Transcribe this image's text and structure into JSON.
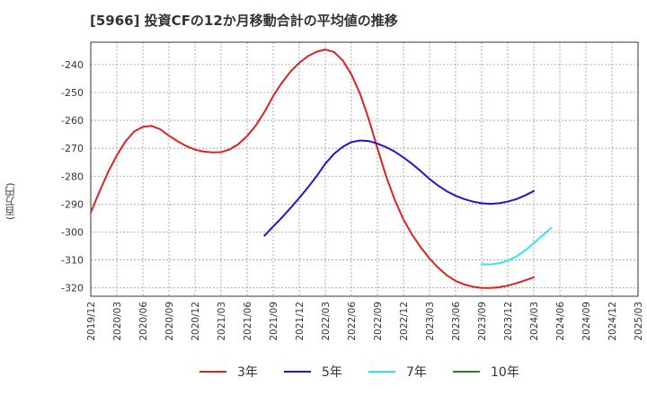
{
  "title": "[5966]  投資CFの12か月移動合計の平均値の推移",
  "ylabel": "(百万円)",
  "chart_data": {
    "type": "line",
    "title": "[5966]  投資CFの12か月移動合計の平均値の推移",
    "ylabel": "(百万円)",
    "xlabel": "",
    "ylim": [
      -323,
      -232
    ],
    "xlim": [
      "2019/12",
      "2025/03"
    ],
    "yticks": [
      -240,
      -250,
      -260,
      -270,
      -280,
      -290,
      -300,
      -310,
      -320
    ],
    "xticks": [
      "2019/12",
      "2020/03",
      "2020/06",
      "2020/09",
      "2020/12",
      "2021/03",
      "2021/06",
      "2021/09",
      "2021/12",
      "2022/03",
      "2022/06",
      "2022/09",
      "2022/12",
      "2023/03",
      "2023/06",
      "2023/09",
      "2023/12",
      "2024/03",
      "2024/06",
      "2024/09",
      "2024/12",
      "2025/03"
    ],
    "grid": true,
    "legend_position": "bottom",
    "series": [
      {
        "name": "3年",
        "color": "#dd2222",
        "points": [
          [
            "2019/12",
            -293
          ],
          [
            "2020/01",
            -285.5
          ],
          [
            "2020/02",
            -278.5
          ],
          [
            "2020/03",
            -272.5
          ],
          [
            "2020/04",
            -267.5
          ],
          [
            "2020/05",
            -264
          ],
          [
            "2020/06",
            -262.3
          ],
          [
            "2020/07",
            -262
          ],
          [
            "2020/08",
            -263.2
          ],
          [
            "2020/09",
            -265.5
          ],
          [
            "2020/10",
            -267.5
          ],
          [
            "2020/11",
            -269.2
          ],
          [
            "2020/12",
            -270.5
          ],
          [
            "2021/01",
            -271.2
          ],
          [
            "2021/02",
            -271.5
          ],
          [
            "2021/03",
            -271.4
          ],
          [
            "2021/04",
            -270.4
          ],
          [
            "2021/05",
            -268.5
          ],
          [
            "2021/06",
            -265.6
          ],
          [
            "2021/07",
            -261.8
          ],
          [
            "2021/08",
            -257
          ],
          [
            "2021/09",
            -251.3
          ],
          [
            "2021/10",
            -246.5
          ],
          [
            "2021/11",
            -242.5
          ],
          [
            "2021/12",
            -239.4
          ],
          [
            "2022/01",
            -237
          ],
          [
            "2022/02",
            -235.4
          ],
          [
            "2022/03",
            -234.6
          ],
          [
            "2022/04",
            -235.5
          ],
          [
            "2022/05",
            -238.5
          ],
          [
            "2022/06",
            -243.5
          ],
          [
            "2022/07",
            -250.5
          ],
          [
            "2022/08",
            -259.5
          ],
          [
            "2022/09",
            -270
          ],
          [
            "2022/10",
            -280
          ],
          [
            "2022/11",
            -288.5
          ],
          [
            "2022/12",
            -295.5
          ],
          [
            "2023/01",
            -301
          ],
          [
            "2023/02",
            -305.5
          ],
          [
            "2023/03",
            -309.5
          ],
          [
            "2023/04",
            -312.8
          ],
          [
            "2023/05",
            -315.5
          ],
          [
            "2023/06",
            -317.5
          ],
          [
            "2023/07",
            -318.8
          ],
          [
            "2023/08",
            -319.6
          ],
          [
            "2023/09",
            -320
          ],
          [
            "2023/10",
            -320
          ],
          [
            "2023/11",
            -319.8
          ],
          [
            "2023/12",
            -319.2
          ],
          [
            "2024/01",
            -318.3
          ],
          [
            "2024/02",
            -317.3
          ],
          [
            "2024/03",
            -316.2
          ]
        ]
      },
      {
        "name": "5年",
        "color": "#1a1acc",
        "points": [
          [
            "2021/08",
            -301.3
          ],
          [
            "2021/09",
            -298
          ],
          [
            "2021/10",
            -294.8
          ],
          [
            "2021/11",
            -291.4
          ],
          [
            "2021/12",
            -287.8
          ],
          [
            "2022/01",
            -284
          ],
          [
            "2022/02",
            -280
          ],
          [
            "2022/03",
            -275.5
          ],
          [
            "2022/04",
            -272
          ],
          [
            "2022/05",
            -269.5
          ],
          [
            "2022/06",
            -267.8
          ],
          [
            "2022/07",
            -267.2
          ],
          [
            "2022/08",
            -267.4
          ],
          [
            "2022/09",
            -268.3
          ],
          [
            "2022/10",
            -269.6
          ],
          [
            "2022/11",
            -271.2
          ],
          [
            "2022/12",
            -273.3
          ],
          [
            "2023/01",
            -275.6
          ],
          [
            "2023/02",
            -278.2
          ],
          [
            "2023/03",
            -281
          ],
          [
            "2023/04",
            -283.4
          ],
          [
            "2023/05",
            -285.4
          ],
          [
            "2023/06",
            -287
          ],
          [
            "2023/07",
            -288.2
          ],
          [
            "2023/08",
            -289.1
          ],
          [
            "2023/09",
            -289.7
          ],
          [
            "2023/10",
            -289.9
          ],
          [
            "2023/11",
            -289.7
          ],
          [
            "2023/12",
            -289.1
          ],
          [
            "2024/01",
            -288.2
          ],
          [
            "2024/02",
            -286.9
          ],
          [
            "2024/03",
            -285.3
          ]
        ]
      },
      {
        "name": "7年",
        "color": "#33e6ee",
        "points": [
          [
            "2023/09",
            -311.5
          ],
          [
            "2023/10",
            -311.6
          ],
          [
            "2023/11",
            -311.2
          ],
          [
            "2023/12",
            -310.3
          ],
          [
            "2024/01",
            -308.7
          ],
          [
            "2024/02",
            -306.6
          ],
          [
            "2024/03",
            -304
          ],
          [
            "2024/04",
            -301.2
          ],
          [
            "2024/05",
            -298.6
          ]
        ]
      },
      {
        "name": "10年",
        "color": "#228822",
        "points": []
      }
    ]
  }
}
